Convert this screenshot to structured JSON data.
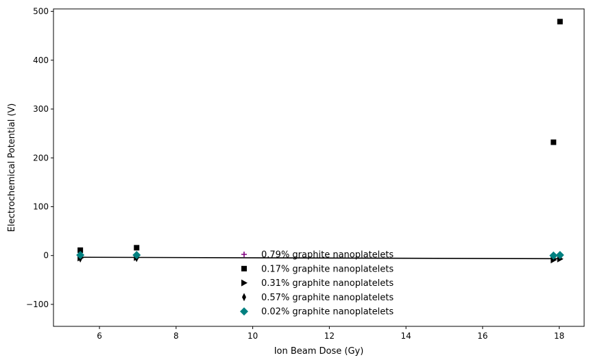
{
  "chart_data": {
    "type": "scatter",
    "title": "",
    "xlabel": "Ion Beam Dose (Gy)",
    "ylabel": "Electrochemical Potential (V)",
    "xlim": [
      4.8,
      18.65
    ],
    "ylim": [
      -145,
      505
    ],
    "xticks": [
      6,
      8,
      10,
      12,
      14,
      16,
      18
    ],
    "yticks": [
      -100,
      0,
      100,
      200,
      300,
      400,
      500
    ],
    "xtick_labels": [
      "6",
      "8",
      "10",
      "12",
      "14",
      "16",
      "18"
    ],
    "ytick_labels": [
      "−100",
      "0",
      "100",
      "200",
      "300",
      "400",
      "500"
    ],
    "grid": false,
    "legend_position": "lower-center",
    "series": [
      {
        "name": "0.79% graphite nanoplatelets",
        "marker": "plus",
        "color": "#800080",
        "points": [
          [
            5.5,
            1
          ],
          [
            6.97,
            0
          ],
          [
            17.85,
            1
          ],
          [
            18.02,
            2
          ]
        ]
      },
      {
        "name": "0.17% graphite nanoplatelets",
        "marker": "square",
        "color": "#000000",
        "points": [
          [
            5.5,
            11
          ],
          [
            6.97,
            16
          ],
          [
            17.85,
            232
          ],
          [
            18.02,
            479
          ]
        ]
      },
      {
        "name": "0.31% graphite nanoplatelets",
        "marker": "triangle-right",
        "color": "#000000",
        "points": [
          [
            5.5,
            -5
          ],
          [
            6.97,
            -4
          ],
          [
            17.85,
            -9
          ],
          [
            18.02,
            -7
          ]
        ]
      },
      {
        "name": "0.57% graphite nanoplatelets",
        "marker": "thin-diamond",
        "color": "#000000",
        "points": [
          [
            5.5,
            -6
          ],
          [
            6.97,
            -5
          ],
          [
            17.85,
            -3
          ],
          [
            18.02,
            -3
          ]
        ]
      },
      {
        "name": "0.02% graphite nanoplatelets",
        "marker": "diamond",
        "color": "#008080",
        "points": [
          [
            5.5,
            1
          ],
          [
            6.97,
            1
          ],
          [
            17.85,
            0
          ],
          [
            18.02,
            1
          ]
        ]
      }
    ],
    "trend_line": {
      "color": "#000000",
      "points": [
        [
          5.5,
          -3.5
        ],
        [
          18.02,
          -6.5
        ]
      ]
    }
  }
}
